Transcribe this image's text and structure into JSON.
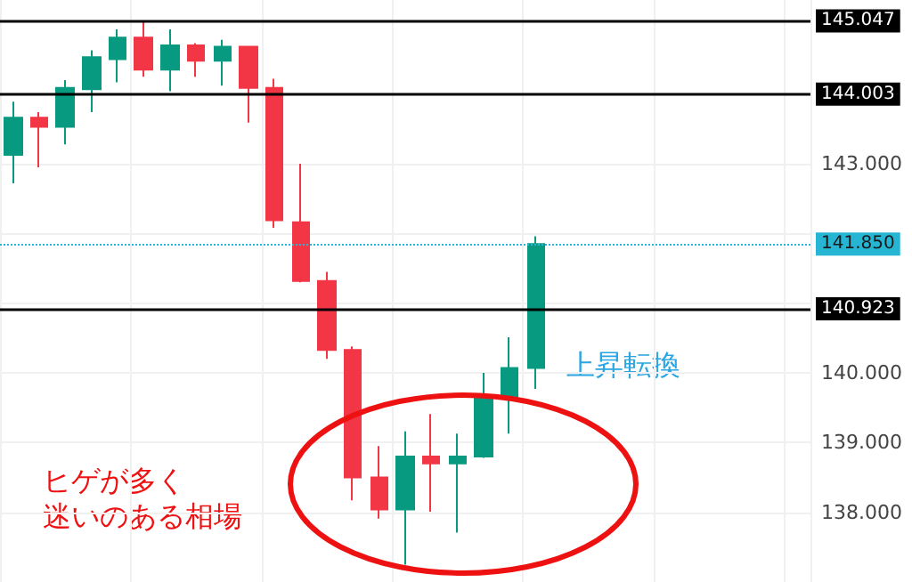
{
  "chart_data": {
    "type": "candlestick",
    "categories": [
      null,
      null,
      null,
      null,
      null,
      null,
      null,
      null,
      null,
      null,
      null,
      null,
      null,
      null,
      null,
      null,
      null,
      null,
      null,
      null,
      null,
      null,
      null,
      null,
      null,
      null,
      null,
      null,
      null,
      null,
      null
    ],
    "ohlc": [
      [
        143.13,
        143.89,
        142.72,
        143.66
      ],
      [
        143.66,
        143.74,
        142.95,
        143.53
      ],
      [
        143.53,
        144.2,
        143.28,
        144.09
      ],
      [
        144.07,
        144.63,
        143.74,
        144.53
      ],
      [
        144.5,
        144.93,
        144.17,
        144.81
      ],
      [
        144.81,
        145.05,
        144.25,
        144.35
      ],
      [
        144.35,
        144.93,
        144.04,
        144.7
      ],
      [
        144.7,
        144.73,
        144.25,
        144.48
      ],
      [
        144.48,
        144.78,
        144.12,
        144.68
      ],
      [
        144.68,
        144.68,
        143.59,
        144.09
      ],
      [
        144.09,
        144.22,
        142.08,
        142.19
      ],
      [
        142.16,
        143.0,
        141.3,
        141.32
      ],
      [
        141.32,
        141.45,
        140.2,
        140.33
      ],
      [
        140.33,
        140.38,
        138.17,
        138.5
      ],
      [
        138.5,
        138.95,
        137.91,
        138.04
      ],
      [
        138.04,
        139.16,
        137.25,
        138.8
      ],
      [
        138.8,
        139.41,
        138.01,
        138.7
      ],
      [
        138.7,
        139.13,
        137.71,
        138.8
      ],
      [
        138.8,
        140.0,
        138.78,
        139.64
      ],
      [
        139.64,
        140.51,
        139.13,
        140.07
      ],
      [
        140.07,
        141.96,
        139.77,
        141.85
      ],
      null,
      null,
      null,
      null,
      null,
      null,
      null,
      null,
      null,
      null
    ],
    "colors": [
      "#089981",
      "#f23645",
      "#089981",
      "#089981",
      "#089981",
      "#f23645",
      "#089981",
      "#f23645",
      "#089981",
      "#f23645",
      "#f23645",
      "#f23645",
      "#f23645",
      "#f23645",
      "#f23645",
      "#089981",
      "#f23645",
      "#089981",
      "#089981",
      "#089981",
      "#089981",
      null,
      null,
      null,
      null,
      null,
      null,
      null,
      null,
      null,
      null
    ],
    "ylim": [
      137.0,
      145.35
    ],
    "yticks": [
      {
        "value": 138,
        "label": "138.000"
      },
      {
        "value": 139,
        "label": "139.000"
      },
      {
        "value": 140,
        "label": "140.000"
      },
      {
        "value": 141,
        "label": null
      },
      {
        "value": 142,
        "label": null
      },
      {
        "value": 143,
        "label": "143.000"
      }
    ],
    "tick_labels": "y",
    "grid": true,
    "ref_lines": [
      {
        "axis": "y",
        "value": 145.047,
        "label": "145.047",
        "color": "#000000",
        "line_style": "solid"
      },
      {
        "axis": "y",
        "value": 144.003,
        "label": "144.003",
        "color": "#000000",
        "line_style": "solid"
      },
      {
        "axis": "y",
        "value": 141.85,
        "label": "141.850",
        "color": "#26b5d3",
        "line_style": "dotted"
      },
      {
        "axis": "y",
        "value": 140.923,
        "label": "140.923",
        "color": "#000000",
        "line_style": "solid"
      }
    ],
    "annotations": [
      "上昇転換",
      "ヒゲが多く迷いのある相場"
    ]
  }
}
